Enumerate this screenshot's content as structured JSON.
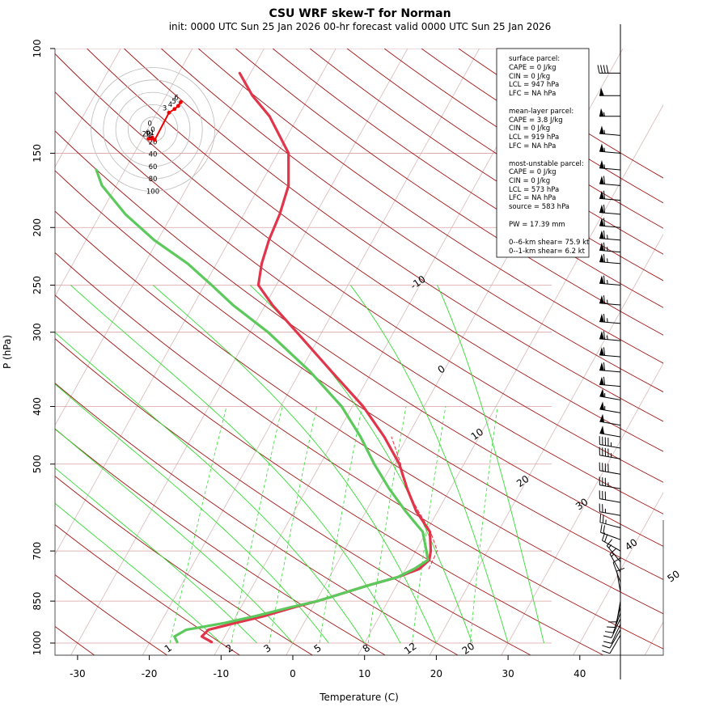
{
  "title": "CSU WRF skew-T for Norman",
  "subtitle": "init: 0000 UTC Sun 25 Jan 2026    00-hr forecast valid 0000 UTC Sun 25 Jan 2026",
  "colors": {
    "temperature": "#e0354a",
    "dewpoint": "#5cc95c",
    "dry_adiabat": "#a31515",
    "moist_adiabat": "#33dd33",
    "mixing_ratio": "#33dd33",
    "isotherm": "#d9b8b8",
    "isobar": "#d9a0a0",
    "hodograph": "#ee0000",
    "parcel": "#e0354a"
  },
  "chart_data": {
    "type": "line",
    "xlabel": "Temperature (C)",
    "ylabel": "P (hPa)",
    "x_ticks": [
      -30,
      -20,
      -10,
      0,
      10,
      20,
      30,
      40
    ],
    "p_ticks": [
      100,
      150,
      200,
      250,
      300,
      400,
      500,
      700,
      850,
      1000
    ],
    "p_tick_labels": [
      "100",
      "150",
      "200",
      "250",
      "300",
      "400",
      "500",
      "700",
      "850",
      "1000"
    ],
    "pressure_range": [
      1000,
      100
    ],
    "temperature_range_at_1000hPa": [
      -33,
      52
    ],
    "skew_degC_per_log_decade": 46,
    "isotherm_labels": [
      "-10",
      "0",
      "10",
      "20",
      "30",
      "40",
      "50"
    ],
    "isotherm_label_values": [
      -10,
      0,
      10,
      20,
      30,
      40,
      50
    ],
    "mixing_ratio_labels": [
      "1",
      "2",
      "3",
      "5",
      "8",
      "12",
      "20"
    ],
    "mixing_ratio_values": [
      1,
      2,
      3,
      5,
      8,
      12,
      20
    ],
    "series": [
      {
        "name": "temperature",
        "points": [
          [
            996,
            -11.4
          ],
          [
            975,
            -13.2
          ],
          [
            950,
            -12.8
          ],
          [
            925,
            -9.5
          ],
          [
            900,
            -6.0
          ],
          [
            870,
            -2.5
          ],
          [
            850,
            0.2
          ],
          [
            800,
            6.0
          ],
          [
            775,
            9.5
          ],
          [
            750,
            11.9
          ],
          [
            725,
            12.6
          ],
          [
            700,
            12.1
          ],
          [
            650,
            10.5
          ],
          [
            600,
            7.0
          ],
          [
            550,
            4.0
          ],
          [
            500,
            1.0
          ],
          [
            450,
            -3.2
          ],
          [
            400,
            -8.5
          ],
          [
            350,
            -15.5
          ],
          [
            300,
            -23.5
          ],
          [
            270,
            -29.0
          ],
          [
            250,
            -32.5
          ],
          [
            230,
            -33.7
          ],
          [
            210,
            -34.5
          ],
          [
            190,
            -35.0
          ],
          [
            170,
            -36.0
          ],
          [
            150,
            -38.5
          ],
          [
            130,
            -44.0
          ],
          [
            120,
            -48.0
          ],
          [
            110,
            -51.5
          ]
        ]
      },
      {
        "name": "dewpoint",
        "points": [
          [
            996,
            -16.2
          ],
          [
            975,
            -17.0
          ],
          [
            950,
            -15.9
          ],
          [
            925,
            -11.0
          ],
          [
            900,
            -7.2
          ],
          [
            870,
            -3.0
          ],
          [
            850,
            0.2
          ],
          [
            800,
            6.0
          ],
          [
            775,
            9.5
          ],
          [
            750,
            11.2
          ],
          [
            725,
            12.4
          ],
          [
            700,
            11.5
          ],
          [
            650,
            9.5
          ],
          [
            600,
            5.5
          ],
          [
            550,
            1.5
          ],
          [
            500,
            -2.5
          ],
          [
            450,
            -6.5
          ],
          [
            400,
            -11.5
          ],
          [
            350,
            -18.5
          ],
          [
            300,
            -27.5
          ],
          [
            270,
            -34.5
          ],
          [
            250,
            -39.0
          ],
          [
            230,
            -44.0
          ],
          [
            210,
            -50.5
          ],
          [
            190,
            -56.5
          ],
          [
            170,
            -62.0
          ],
          [
            160,
            -64.0
          ]
        ]
      },
      {
        "name": "parcel",
        "points": [
          [
            750,
            13.2
          ],
          [
            700,
            13.0
          ],
          [
            650,
            10.6
          ],
          [
            600,
            7.3
          ],
          [
            550,
            3.9
          ],
          [
            520,
            2.1
          ],
          [
            500,
            1.2
          ],
          [
            450,
            -2.2
          ]
        ]
      }
    ],
    "hodograph": {
      "rings": [
        20,
        40,
        60,
        80,
        100
      ],
      "ring_labels": [
        "0",
        "20",
        "40",
        "60",
        "80",
        "100"
      ],
      "points": [
        {
          "label": "0",
          "u": 2,
          "v": 2
        },
        {
          "label": "01",
          "u": -1,
          "v": -13
        },
        {
          "label": "1",
          "u": -2,
          "v": -15
        },
        {
          "label": "29",
          "u": -7,
          "v": -15
        },
        {
          "label": "2",
          "u": 3,
          "v": -17
        },
        {
          "label": "3",
          "u": 26,
          "v": 27
        },
        {
          "label": "4",
          "u": 35,
          "v": 33
        },
        {
          "label": "5",
          "u": 41,
          "v": 38
        },
        {
          "label": "6",
          "u": 45,
          "v": 44
        }
      ]
    },
    "wind_barbs": [
      {
        "p": 110,
        "kt": 40,
        "dir": 270
      },
      {
        "p": 120,
        "kt": 50,
        "dir": 270
      },
      {
        "p": 130,
        "kt": 55,
        "dir": 270
      },
      {
        "p": 140,
        "kt": 55,
        "dir": 275
      },
      {
        "p": 150,
        "kt": 55,
        "dir": 275
      },
      {
        "p": 160,
        "kt": 55,
        "dir": 275
      },
      {
        "p": 170,
        "kt": 60,
        "dir": 275
      },
      {
        "p": 180,
        "kt": 60,
        "dir": 275
      },
      {
        "p": 190,
        "kt": 60,
        "dir": 275
      },
      {
        "p": 200,
        "kt": 60,
        "dir": 275
      },
      {
        "p": 210,
        "kt": 65,
        "dir": 275
      },
      {
        "p": 220,
        "kt": 65,
        "dir": 275
      },
      {
        "p": 230,
        "kt": 65,
        "dir": 275
      },
      {
        "p": 250,
        "kt": 65,
        "dir": 275
      },
      {
        "p": 270,
        "kt": 65,
        "dir": 275
      },
      {
        "p": 290,
        "kt": 65,
        "dir": 275
      },
      {
        "p": 310,
        "kt": 65,
        "dir": 275
      },
      {
        "p": 330,
        "kt": 60,
        "dir": 275
      },
      {
        "p": 350,
        "kt": 60,
        "dir": 275
      },
      {
        "p": 370,
        "kt": 60,
        "dir": 275
      },
      {
        "p": 390,
        "kt": 55,
        "dir": 280
      },
      {
        "p": 410,
        "kt": 55,
        "dir": 280
      },
      {
        "p": 430,
        "kt": 50,
        "dir": 280
      },
      {
        "p": 450,
        "kt": 50,
        "dir": 280
      },
      {
        "p": 470,
        "kt": 45,
        "dir": 280
      },
      {
        "p": 490,
        "kt": 45,
        "dir": 280
      },
      {
        "p": 520,
        "kt": 40,
        "dir": 280
      },
      {
        "p": 550,
        "kt": 35,
        "dir": 280
      },
      {
        "p": 580,
        "kt": 30,
        "dir": 280
      },
      {
        "p": 610,
        "kt": 25,
        "dir": 280
      },
      {
        "p": 640,
        "kt": 25,
        "dir": 285
      },
      {
        "p": 670,
        "kt": 20,
        "dir": 290
      },
      {
        "p": 700,
        "kt": 20,
        "dir": 300
      },
      {
        "p": 730,
        "kt": 15,
        "dir": 320
      },
      {
        "p": 760,
        "kt": 15,
        "dir": 330
      },
      {
        "p": 790,
        "kt": 10,
        "dir": 340
      },
      {
        "p": 820,
        "kt": 10,
        "dir": 350
      },
      {
        "p": 850,
        "kt": 10,
        "dir": 190
      },
      {
        "p": 870,
        "kt": 10,
        "dir": 195
      },
      {
        "p": 890,
        "kt": 10,
        "dir": 200
      },
      {
        "p": 910,
        "kt": 10,
        "dir": 205
      },
      {
        "p": 930,
        "kt": 10,
        "dir": 205
      },
      {
        "p": 950,
        "kt": 10,
        "dir": 210
      },
      {
        "p": 970,
        "kt": 10,
        "dir": 210
      }
    ]
  },
  "legend": {
    "surface_heading": "surface parcel:",
    "surface_cape": "CAPE = 0 J/kg",
    "surface_cin": "CIN = 0 J/kg",
    "surface_lcl": "LCL = 947 hPa",
    "surface_lfc": "LFC = NA hPa",
    "ml_heading": "mean-layer parcel:",
    "ml_cape": "CAPE = 3.8 J/kg",
    "ml_cin": "CIN = 0 J/kg",
    "ml_lcl": "LCL = 919 hPa",
    "ml_lfc": "LFC = NA hPa",
    "mu_heading": "most-unstable parcel:",
    "mu_cape": "CAPE = 0 J/kg",
    "mu_cin": "CIN = 0 J/kg",
    "mu_lcl": "LCL = 573 hPa",
    "mu_lfc": "LFC = NA hPa",
    "mu_source": "source = 583 hPa",
    "pw": "PW =  17.39 mm",
    "shear_06": "0--6-km shear= 75.9 kt",
    "shear_01": "0--1-km shear= 6.2 kt"
  }
}
